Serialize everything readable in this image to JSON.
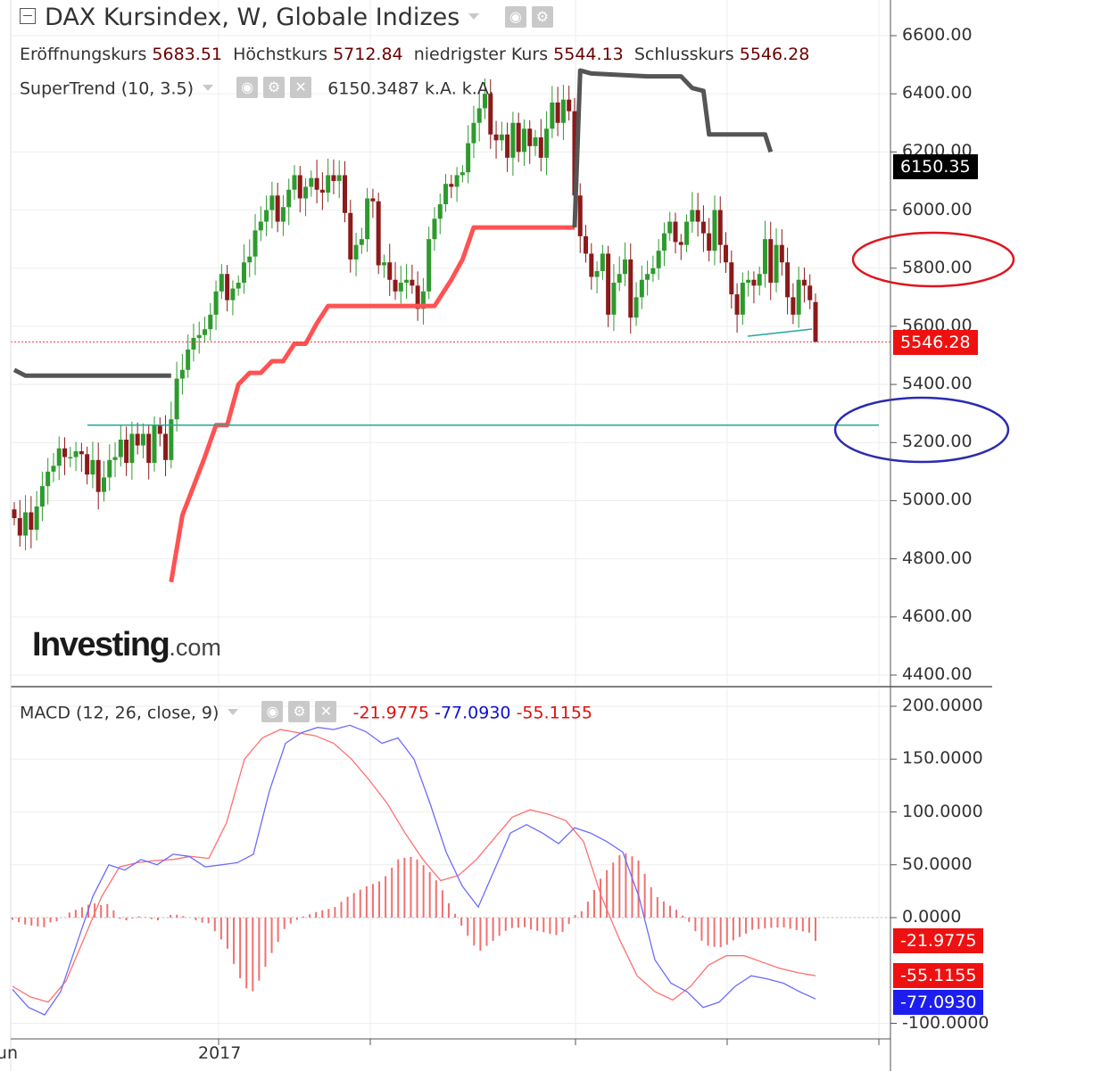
{
  "title": "DAX Kursindex, W, Globale Indizes",
  "ohlc": {
    "open_label": "Eröffnungskurs",
    "open": "5683.51",
    "high_label": "Höchstkurs",
    "high": "5712.84",
    "low_label": "niedrigster Kurs",
    "low": "5544.13",
    "close_label": "Schlusskurs",
    "close": "5546.28"
  },
  "supertrend": {
    "label": "SuperTrend (10, 3.5)",
    "value": "6150.3487",
    "v2": "k.A.",
    "v3": "k.A."
  },
  "macd": {
    "label": "MACD (12, 26, close, 9)",
    "hist": "-21.9775",
    "macd": "-77.0930",
    "signal": "-55.1155"
  },
  "logo": {
    "main": "Investing",
    "suffix": ".com"
  },
  "tags": {
    "supertrend": "6150.35",
    "close": "5546.28",
    "hist": "-21.9775",
    "signal": "-55.1155",
    "macd": "-77.0930"
  },
  "colors": {
    "up": "#2e9a2e",
    "down": "#8b1a1a",
    "supertrend_up": "#ff5252",
    "supertrend_down": "#555555",
    "macd_line": "#6b6bff",
    "signal_line": "#ff7070",
    "hist": "#f07070",
    "support_line": "#26a69a",
    "close_line": "#ff3333",
    "ellipse_red": "#e0141e",
    "ellipse_blue": "#2b2bb0"
  },
  "chart_data": [
    {
      "type": "candlestick",
      "title": "DAX Kursindex, W, Globale Indizes",
      "interval": "W",
      "ylim": [
        4400,
        6700
      ],
      "yticks": [
        "6600.00",
        "6400.00",
        "6200.00",
        "6000.00",
        "5800.00",
        "5600.00",
        "5400.00",
        "5200.00",
        "5000.00",
        "4800.00",
        "4600.00",
        "4400.00"
      ],
      "xticks": [
        "Jun",
        "2017"
      ],
      "grid": true,
      "last_candle": {
        "open": 5683.51,
        "high": 5712.84,
        "low": 5544.13,
        "close": 5546.28
      },
      "closes": [
        4940,
        4880,
        4960,
        4900,
        4980,
        5050,
        5100,
        5120,
        5180,
        5150,
        5150,
        5170,
        5160,
        5090,
        5140,
        5030,
        5080,
        5140,
        5150,
        5210,
        5130,
        5230,
        5190,
        5230,
        5130,
        5260,
        5230,
        5140,
        5280,
        5420,
        5450,
        5520,
        5560,
        5570,
        5590,
        5640,
        5720,
        5780,
        5690,
        5730,
        5750,
        5820,
        5840,
        5930,
        5960,
        6000,
        6050,
        5960,
        6010,
        6070,
        6120,
        6040,
        6080,
        6110,
        6070,
        6060,
        6120,
        6100,
        6120,
        5990,
        5830,
        5880,
        5900,
        6040,
        6030,
        5810,
        5820,
        5760,
        5720,
        5750,
        5760,
        5740,
        5660,
        5720,
        5900,
        5970,
        6020,
        6090,
        6080,
        6120,
        6130,
        6230,
        6300,
        6350,
        6400,
        6260,
        6240,
        6260,
        6180,
        6300,
        6200,
        6280,
        6220,
        6250,
        6180,
        6280,
        6370,
        6300,
        6380,
        6340,
        6050,
        5910,
        5850,
        5770,
        5790,
        5850,
        5640,
        5750,
        5780,
        5830,
        5630,
        5700,
        5760,
        5780,
        5800,
        5860,
        5920,
        5960,
        5890,
        5880,
        5960,
        6000,
        5960,
        5920,
        5860,
        6000,
        5880,
        5820,
        5710,
        5640,
        5750,
        5760,
        5740,
        5780,
        5900,
        5750,
        5880,
        5820,
        5700,
        5640,
        5760,
        5740,
        5690,
        5546.28
      ]
    },
    {
      "type": "line",
      "name": "SuperTrend (10, 3.5)",
      "value": 6150.3487,
      "segments": [
        {
          "trend": "down",
          "points": [
            [
              0,
              5450
            ],
            [
              2,
              5430
            ],
            [
              28,
              5430
            ]
          ]
        },
        {
          "trend": "up",
          "points": [
            [
              28,
              4720
            ],
            [
              30,
              4950
            ],
            [
              32,
              5050
            ],
            [
              34,
              5150
            ],
            [
              36,
              5260
            ],
            [
              38,
              5260
            ],
            [
              40,
              5400
            ],
            [
              42,
              5440
            ],
            [
              44,
              5440
            ],
            [
              46,
              5480
            ],
            [
              48,
              5480
            ],
            [
              50,
              5540
            ],
            [
              52,
              5540
            ],
            [
              54,
              5610
            ],
            [
              56,
              5670
            ],
            [
              60,
              5670
            ],
            [
              75,
              5670
            ],
            [
              78,
              5760
            ],
            [
              80,
              5830
            ],
            [
              82,
              5940
            ],
            [
              98,
              5940
            ],
            [
              100,
              5940
            ]
          ]
        },
        {
          "trend": "down",
          "points": [
            [
              100,
              5940
            ],
            [
              101,
              6480
            ],
            [
              103,
              6470
            ],
            [
              113,
              6460
            ],
            [
              119,
              6460
            ],
            [
              121,
              6420
            ],
            [
              123,
              6410
            ],
            [
              124,
              6260
            ],
            [
              134,
              6260
            ],
            [
              135,
              6200
            ]
          ]
        }
      ]
    },
    {
      "type": "line+bar",
      "name": "MACD (12, 26, close, 9)",
      "ylim": [
        -110,
        210
      ],
      "yticks": [
        "200.0000",
        "150.0000",
        "100.0000",
        "50.0000",
        "0.0000",
        "-100.0000"
      ],
      "histogram": -21.9775,
      "macd": -77.093,
      "signal": -55.1155,
      "macd_line": [
        -68,
        -85,
        -92,
        -70,
        -25,
        20,
        50,
        45,
        55,
        50,
        60,
        58,
        48,
        50,
        52,
        60,
        120,
        165,
        175,
        180,
        178,
        182,
        176,
        165,
        170,
        150,
        108,
        62,
        30,
        10,
        45,
        80,
        88,
        80,
        70,
        85,
        80,
        72,
        62,
        20,
        -40,
        -62,
        -70,
        -85,
        -80,
        -65,
        -55,
        -58,
        -62,
        -70,
        -77
      ],
      "signal_line": [
        -65,
        -75,
        -80,
        -60,
        -20,
        20,
        48,
        52,
        54,
        55,
        58,
        56,
        90,
        150,
        170,
        178,
        175,
        172,
        165,
        150,
        130,
        108,
        80,
        55,
        35,
        40,
        55,
        75,
        95,
        102,
        98,
        92,
        72,
        20,
        -20,
        -55,
        -70,
        -78,
        -65,
        -45,
        -36,
        -36,
        -42,
        -48,
        -52,
        -55
      ]
    }
  ]
}
